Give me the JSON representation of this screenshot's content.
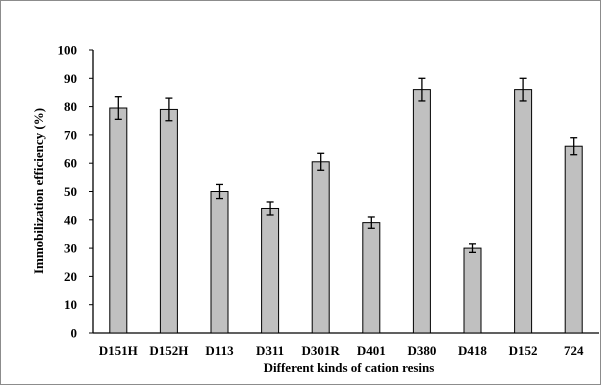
{
  "chart_data": {
    "type": "bar",
    "title": "",
    "xlabel": "Different kinds of cation resins",
    "ylabel": "Immobilization efficiency (%)",
    "ylim": [
      0,
      100
    ],
    "yticks": [
      0,
      10,
      20,
      30,
      40,
      50,
      60,
      70,
      80,
      90,
      100
    ],
    "categories": [
      "D151H",
      "D152H",
      "D113",
      "D311",
      "D301R",
      "D401",
      "D380",
      "D418",
      "D152",
      "724"
    ],
    "values": [
      79.5,
      79,
      50,
      44,
      60.5,
      39,
      86,
      30,
      86,
      66
    ],
    "errors": [
      4,
      4,
      2.5,
      2.3,
      3,
      2,
      4,
      1.5,
      4,
      3
    ],
    "grid": false,
    "legend": "none",
    "colors": {
      "bar": "#c0c0c0",
      "bar_edge": "#000000",
      "error_bar": "#000000",
      "axis": "#000000"
    }
  }
}
